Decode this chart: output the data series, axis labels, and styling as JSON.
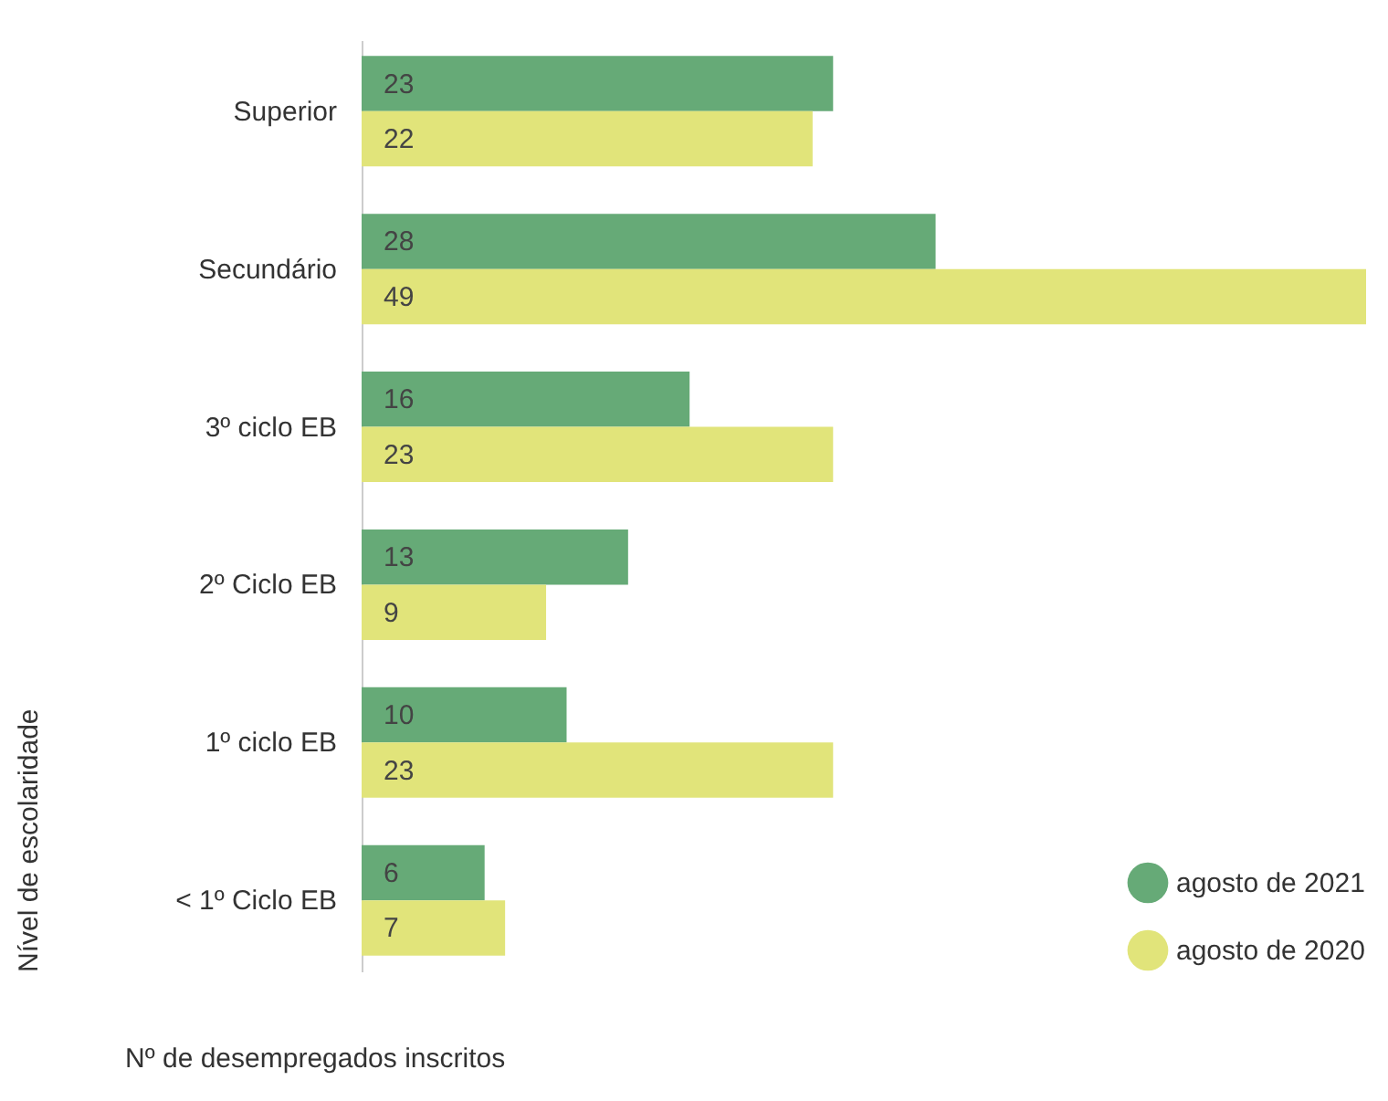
{
  "chart_data": {
    "type": "bar",
    "orientation": "horizontal",
    "xlabel": "Nº de desempregados inscritos",
    "ylabel": "Nível de escolaridade",
    "categories": [
      "Superior",
      "Secundário",
      "3º ciclo EB",
      "2º Ciclo EB",
      "1º ciclo EB",
      "< 1º Ciclo EB"
    ],
    "series": [
      {
        "name": "agosto de 2021",
        "color": "#66aa77",
        "values": [
          23,
          28,
          16,
          13,
          10,
          6
        ]
      },
      {
        "name": "agosto de 2020",
        "color": "#e1e47a",
        "values": [
          22,
          49,
          23,
          9,
          23,
          7
        ]
      }
    ],
    "data_labels": true,
    "legend": "bottom right",
    "grid": false
  }
}
